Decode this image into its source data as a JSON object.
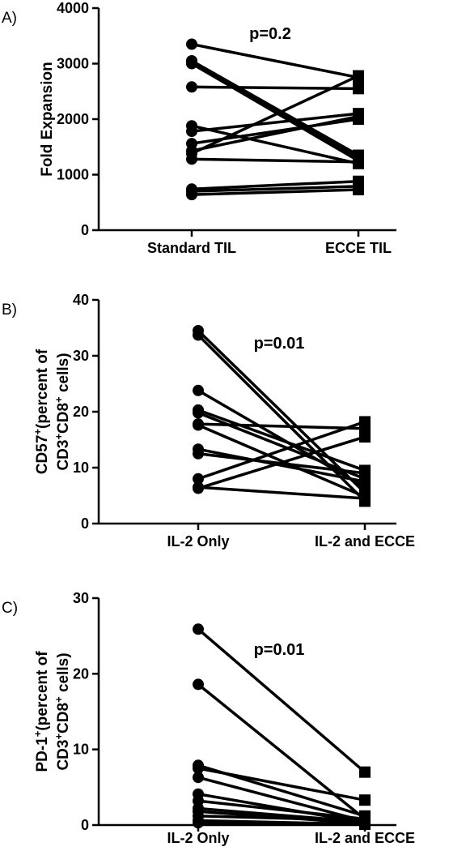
{
  "chart_data": [
    {
      "panel": "A)",
      "type": "line",
      "style": "paired-dot",
      "categories": [
        "Standard TIL",
        "ECCE TIL"
      ],
      "ylabel": "Fold Expansion",
      "ylim": [
        0,
        4000
      ],
      "yticks": [
        0,
        1000,
        2000,
        3000,
        4000
      ],
      "annotation": "p=0.2",
      "markers": [
        "circle",
        "square"
      ],
      "pairs": [
        [
          3350,
          2750
        ],
        [
          3050,
          1300
        ],
        [
          3000,
          1250
        ],
        [
          3050,
          1350
        ],
        [
          2580,
          2550
        ],
        [
          1880,
          1200
        ],
        [
          1780,
          2100
        ],
        [
          1560,
          2000
        ],
        [
          1430,
          2050
        ],
        [
          1380,
          2780
        ],
        [
          1280,
          1230
        ],
        [
          740,
          880
        ],
        [
          700,
          790
        ],
        [
          640,
          730
        ]
      ]
    },
    {
      "panel": "B)",
      "type": "line",
      "style": "paired-dot",
      "categories": [
        "IL-2 Only",
        "IL-2 and ECCE"
      ],
      "ylabel_line1": "CD57",
      "ylabel_line1_sup": "+",
      "ylabel_line1_rest": "(percent of",
      "ylabel_line2_a": "CD3",
      "ylabel_line2_sup1": "+",
      "ylabel_line2_b": "CD8",
      "ylabel_line2_sup2": "+",
      "ylabel_line2_c": " cells)",
      "ylim": [
        0,
        40
      ],
      "yticks": [
        0,
        10,
        20,
        30,
        40
      ],
      "annotation": "p=0.01",
      "markers": [
        "circle",
        "square"
      ],
      "pairs": [
        [
          34.5,
          5.5
        ],
        [
          33.7,
          4.0
        ],
        [
          23.8,
          6.5
        ],
        [
          20.3,
          9.5
        ],
        [
          19.8,
          8.0
        ],
        [
          17.8,
          17.0
        ],
        [
          17.6,
          4.8
        ],
        [
          13.3,
          7.5
        ],
        [
          12.5,
          9.0
        ],
        [
          8.0,
          18.2
        ],
        [
          6.5,
          4.5
        ],
        [
          6.3,
          15.5
        ]
      ]
    },
    {
      "panel": "C)",
      "type": "line",
      "style": "paired-dot",
      "categories": [
        "IL-2 Only",
        "IL-2 and ECCE"
      ],
      "ylabel_line1": "PD-1",
      "ylabel_line1_sup": "+",
      "ylabel_line1_rest": "(percent of",
      "ylabel_line2_a": "CD3",
      "ylabel_line2_sup1": "+",
      "ylabel_line2_b": "CD8",
      "ylabel_line2_sup2": "+",
      "ylabel_line2_c": " cells)",
      "ylim": [
        0,
        30
      ],
      "yticks": [
        0,
        10,
        20,
        30
      ],
      "annotation": "p=0.01",
      "markers": [
        "circle",
        "square"
      ],
      "pairs": [
        [
          25.9,
          7.0
        ],
        [
          18.6,
          0.8
        ],
        [
          7.9,
          1.2
        ],
        [
          7.5,
          3.3
        ],
        [
          6.3,
          0.5
        ],
        [
          4.1,
          0.3
        ],
        [
          3.2,
          0.8
        ],
        [
          2.2,
          0.4
        ],
        [
          1.8,
          0.2
        ],
        [
          1.2,
          0.6
        ],
        [
          0.6,
          0.1
        ],
        [
          0.3,
          0.2
        ]
      ]
    }
  ]
}
